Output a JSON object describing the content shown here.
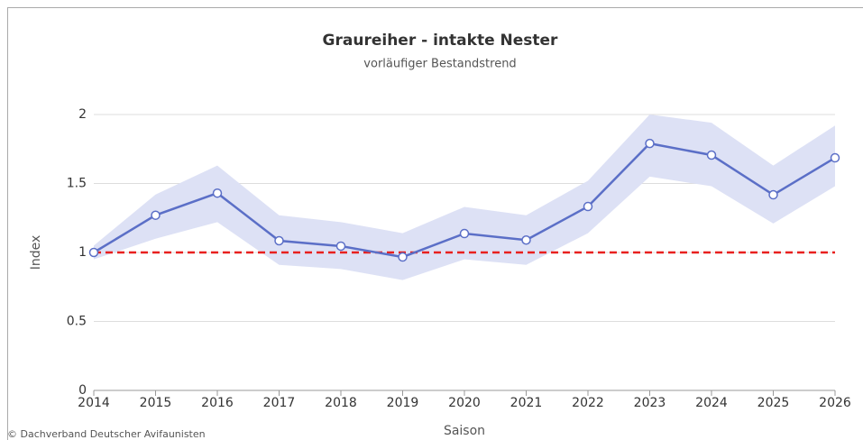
{
  "chart_data": {
    "type": "line",
    "title": "Graureiher - intakte Nester",
    "subtitle": "vorläufiger Bestandstrend",
    "x_label": "Saison",
    "y_label": "Index",
    "credit": "© Dachverband Deutscher Avifaunisten",
    "x": [
      2014,
      2015,
      2016,
      2017,
      2018,
      2019,
      2020,
      2021,
      2022,
      2023,
      2024,
      2025,
      2026
    ],
    "series": [
      {
        "color": "#5b6fc7",
        "values": [
          1.0,
          1.27,
          1.43,
          1.085,
          1.046,
          0.967,
          1.137,
          1.09,
          1.333,
          1.79,
          1.706,
          1.418,
          1.686
        ]
      }
    ],
    "band": {
      "color": "#dde1f5",
      "lower": [
        0.95,
        1.1,
        1.22,
        0.91,
        0.88,
        0.8,
        0.95,
        0.91,
        1.14,
        1.55,
        1.48,
        1.21,
        1.48
      ],
      "upper": [
        1.05,
        1.42,
        1.63,
        1.27,
        1.22,
        1.14,
        1.33,
        1.27,
        1.52,
        2.0,
        1.94,
        1.63,
        1.92
      ]
    },
    "reference_line": {
      "value": 1,
      "color": "#e8201e"
    },
    "xlim": [
      2014,
      2026
    ],
    "xticks": [
      2014,
      2015,
      2016,
      2017,
      2018,
      2019,
      2020,
      2021,
      2022,
      2023,
      2024,
      2025,
      2026
    ],
    "ylim": [
      0,
      2
    ],
    "yticks": [
      0,
      0.5,
      1,
      1.5,
      2
    ],
    "grid": true
  }
}
